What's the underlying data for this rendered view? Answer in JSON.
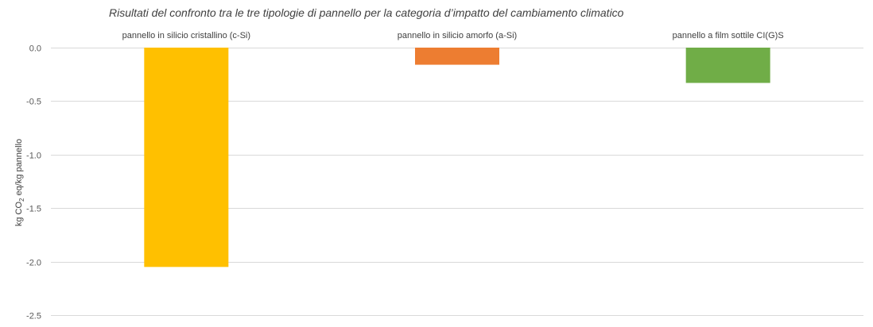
{
  "chart_data": {
    "type": "bar",
    "title": "Risultati del confronto tra le tre tipologie di pannello per la categoria d’impatto del cambiamento climatico",
    "ylabel": {
      "prefix": "kg CO",
      "subscript": "2",
      "suffix": " eq/kg pannello"
    },
    "xlabel": "",
    "categories": [
      "pannello in silicio cristallino (c-Si)",
      "pannello in silicio amorfo (a-Si)",
      "pannello a film sottile CI(G)S"
    ],
    "values": [
      -2.05,
      -0.16,
      -0.33
    ],
    "colors": [
      "#FFC000",
      "#ED7D31",
      "#70AD47"
    ],
    "ylim": [
      -2.5,
      0.0
    ],
    "yticks": [
      0.0,
      -0.5,
      -1.0,
      -1.5,
      -2.0,
      -2.5
    ],
    "ytick_labels": [
      "0.0",
      "-0.5",
      "-1.0",
      "-1.5",
      "-2.0",
      "-2.5"
    ],
    "grid": true,
    "category_label_position": "top"
  }
}
